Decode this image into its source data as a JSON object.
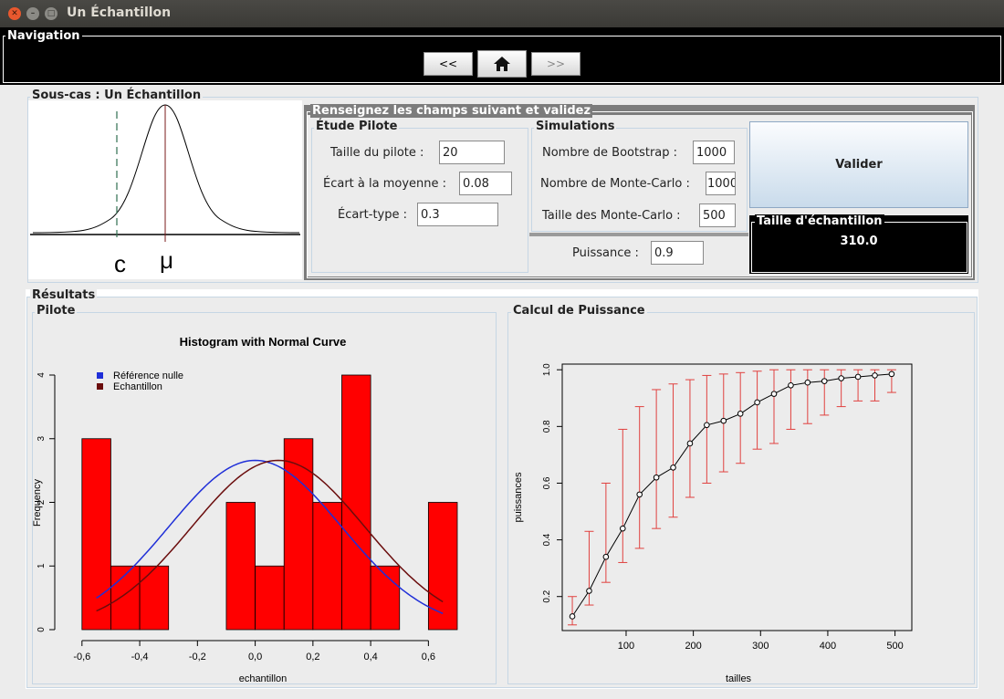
{
  "window": {
    "title": "Un Échantillon"
  },
  "navigation": {
    "legend": "Navigation",
    "prev_label": "<<",
    "next_label": ">>",
    "home_icon": "home-icon"
  },
  "subcase": {
    "legend": "Sous-cas : Un Échantillon",
    "diagram": {
      "c_label": "c",
      "mu_label": "μ"
    },
    "form": {
      "legend": "Renseignez les champs suivant et validez",
      "pilot": {
        "legend": "Étude Pilote",
        "pilot_size_label": "Taille du pilote :",
        "pilot_size_value": "20",
        "mean_diff_label": "Écart à la moyenne :",
        "mean_diff_value": "0.08",
        "sd_label": "Écart-type :",
        "sd_value": "0.3"
      },
      "simulations": {
        "legend": "Simulations",
        "bootstrap_label": "Nombre de Bootstrap :",
        "bootstrap_value": "1000",
        "montecarlo_label": "Nombre de Monte-Carlo :",
        "montecarlo_value": "1000",
        "mc_size_label": "Taille des Monte-Carlo :",
        "mc_size_value": "500"
      },
      "power_label": "Puissance :",
      "power_value": "0.9",
      "validate_label": "Valider",
      "sample_size_legend": "Taille d'échantillon",
      "sample_size_value": "310.0"
    }
  },
  "results": {
    "legend": "Résultats",
    "pilot_legend": "Pilote",
    "power_legend": "Calcul de Puissance"
  },
  "chart_data": [
    {
      "type": "bar",
      "title": "Histogram with Normal Curve",
      "xlabel": "echantillon",
      "ylabel": "Frequency",
      "bin_width": 0.1,
      "bins": [
        -0.6,
        -0.5,
        -0.4,
        -0.3,
        -0.2,
        -0.1,
        0.0,
        0.1,
        0.2,
        0.3,
        0.4,
        0.5,
        0.6
      ],
      "values": [
        3,
        1,
        1,
        0,
        0,
        2,
        1,
        3,
        2,
        4,
        1,
        0,
        2
      ],
      "xticks": [
        "-0,6",
        "-0,4",
        "-0,2",
        "0,0",
        "0,2",
        "0,4",
        "0,6"
      ],
      "xtick_values": [
        -0.6,
        -0.4,
        -0.2,
        0.0,
        0.2,
        0.4,
        0.6
      ],
      "yticks": [
        "0",
        "1",
        "2",
        "3",
        "4"
      ],
      "xlim": [
        -0.65,
        0.7
      ],
      "ylim": [
        0,
        4
      ],
      "series": [
        {
          "name": "Référence nulle",
          "color": "#1f2fd8",
          "mean": 0.0,
          "sd": 0.3
        },
        {
          "name": "Echantillon",
          "color": "#6b0d0d",
          "mean": 0.08,
          "sd": 0.3
        }
      ],
      "bar_color": "#ff0000"
    },
    {
      "type": "line",
      "xlabel": "tailles",
      "ylabel": "puissances",
      "xticks": [
        "100",
        "200",
        "300",
        "400",
        "500"
      ],
      "xtick_values": [
        100,
        200,
        300,
        400,
        500
      ],
      "yticks": [
        "0.2",
        "0.4",
        "0.6",
        "0.8",
        "1.0"
      ],
      "ytick_values": [
        0.2,
        0.4,
        0.6,
        0.8,
        1.0
      ],
      "xlim": [
        5,
        525
      ],
      "ylim": [
        0.08,
        1.02
      ],
      "x": [
        20,
        45,
        70,
        95,
        120,
        145,
        170,
        195,
        220,
        245,
        270,
        295,
        320,
        345,
        370,
        395,
        420,
        445,
        470,
        495
      ],
      "y": [
        0.13,
        0.22,
        0.34,
        0.44,
        0.56,
        0.62,
        0.655,
        0.74,
        0.805,
        0.82,
        0.845,
        0.885,
        0.915,
        0.945,
        0.955,
        0.96,
        0.97,
        0.975,
        0.98,
        0.985
      ],
      "lower": [
        0.1,
        0.17,
        0.25,
        0.32,
        0.37,
        0.44,
        0.48,
        0.55,
        0.6,
        0.64,
        0.67,
        0.72,
        0.74,
        0.79,
        0.81,
        0.84,
        0.87,
        0.89,
        0.89,
        0.92
      ],
      "upper": [
        0.2,
        0.43,
        0.6,
        0.79,
        0.87,
        0.93,
        0.95,
        0.965,
        0.98,
        0.985,
        0.99,
        0.995,
        1.0,
        1.0,
        1.0,
        1.0,
        1.0,
        1.0,
        1.0,
        1.0
      ],
      "line_color": "#000000",
      "error_color": "#e0413f"
    }
  ]
}
